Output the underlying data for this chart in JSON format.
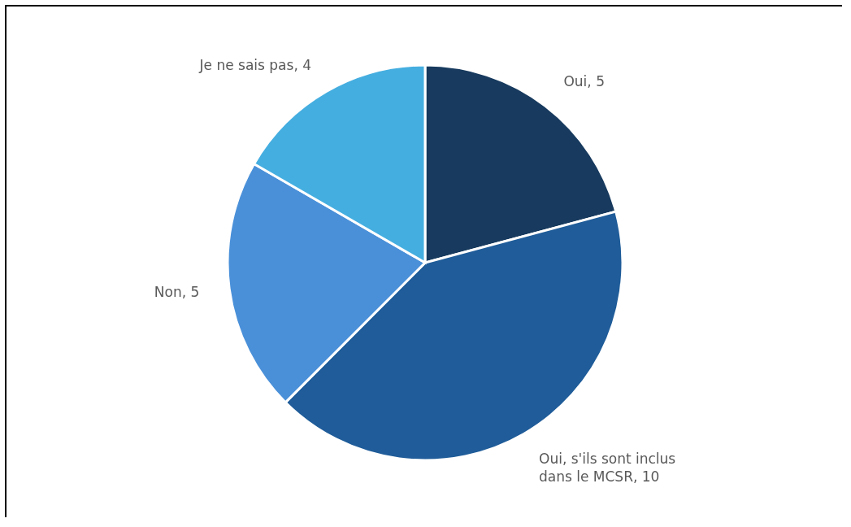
{
  "chart_data": {
    "type": "pie",
    "categories": [
      "Oui",
      "Oui, s'ils sont inclus dans le MCSR",
      "Non",
      "Je ne sais pas"
    ],
    "values": [
      5,
      10,
      5,
      4
    ],
    "colors": [
      "#173a5e",
      "#1f5c99",
      "#4a90d9",
      "#45aee0"
    ],
    "value_labels": [
      ", 5",
      ", 10",
      ", 5",
      ", 4"
    ],
    "legend": false
  }
}
